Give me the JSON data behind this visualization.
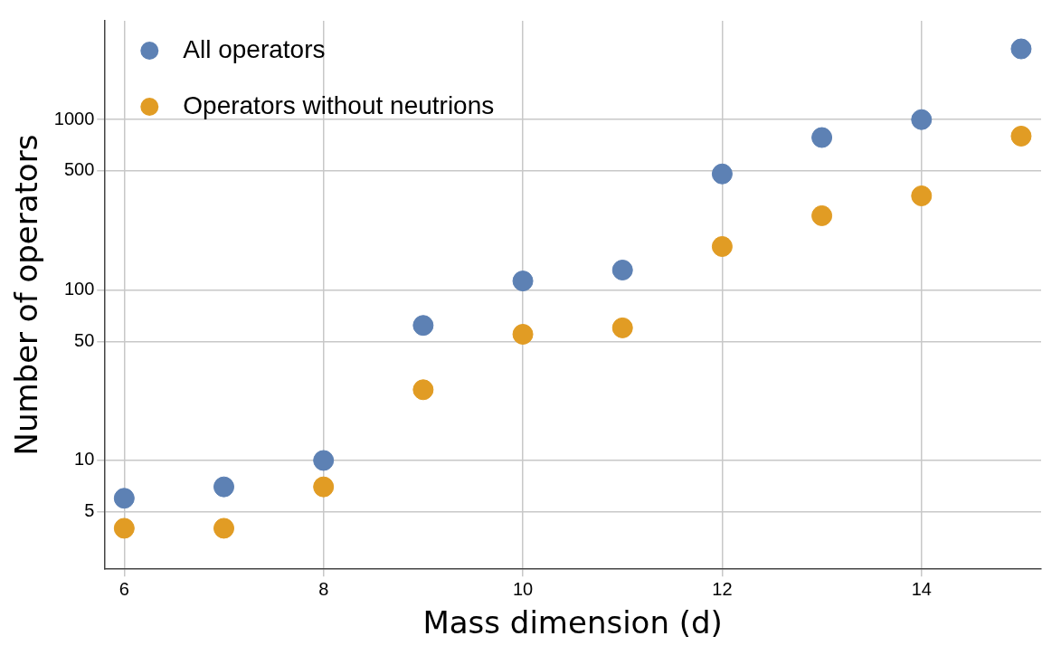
{
  "chart_data": {
    "type": "scatter",
    "xlabel": "Mass dimension (d)",
    "ylabel": "Number of operators",
    "x": [
      6,
      7,
      8,
      9,
      10,
      11,
      12,
      13,
      14,
      15
    ],
    "series": [
      {
        "name": "All operators",
        "color": "#5d81b4",
        "values": [
          6,
          7,
          10,
          62,
          113,
          131,
          480,
          785,
          1000,
          2600
        ]
      },
      {
        "name": "Operators without neutrions",
        "color": "#e19c24",
        "values": [
          4,
          4,
          7,
          26,
          55,
          60,
          180,
          273,
          357,
          800
        ]
      }
    ],
    "log": "y",
    "xlim": [
      5.8,
      15.2
    ],
    "xticks": [
      6,
      8,
      10,
      12,
      14
    ],
    "ylim": [
      2.3,
      3800
    ],
    "yticks": [
      5,
      10,
      50,
      100,
      500,
      1000
    ],
    "grid": true,
    "legend": "top left",
    "marker": "circle"
  }
}
